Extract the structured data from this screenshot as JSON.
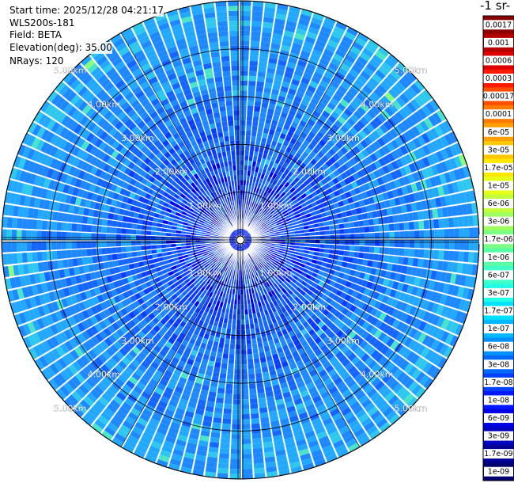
{
  "header": {
    "start_time": "Start time: 2025/12/28 04:21:17",
    "instrument": "WLS200s-181",
    "field": "Field: BETA",
    "elevation": "Elevation(deg): 35.00",
    "nrays": "NRays: 120"
  },
  "colorbar": {
    "unit_label": "-1 sr-",
    "labels": [
      "0.0017",
      "0.001",
      "0.0006",
      "0.0003",
      "0.00017",
      "0.0001",
      "6e-05",
      "3e-05",
      "1.7e-05",
      "1e-05",
      "6e-06",
      "3e-06",
      "1.7e-06",
      "1e-06",
      "6e-07",
      "3e-07",
      "1.7e-07",
      "1e-07",
      "6e-08",
      "3e-08",
      "1.7e-08",
      "1e-08",
      "6e-09",
      "3e-09",
      "1.7e-09",
      "1e-09"
    ],
    "colors": [
      "#8b0000",
      "#b30000",
      "#dd0000",
      "#ff1a00",
      "#ff4d00",
      "#ff7a00",
      "#ffa000",
      "#ffc800",
      "#ffe800",
      "#e6ff1a",
      "#c2ff3c",
      "#9dff60",
      "#7cff85",
      "#5bffa4",
      "#40ffc8",
      "#22ffe8",
      "#00e0ff",
      "#00b8ff",
      "#0090ff",
      "#0068ff",
      "#0040ff",
      "#0018ff",
      "#0000e6",
      "#0000c0",
      "#000096",
      "#00006e"
    ]
  },
  "chart_data": {
    "type": "polar scan (PPI)",
    "field": "BETA",
    "n_rays": 120,
    "elevation_deg": 35.0,
    "range_rings_km": [
      1.0,
      2.0,
      3.0,
      4.0,
      5.0
    ],
    "ring_labels": [
      "1.00km",
      "2.00km",
      "3.00km",
      "4.00km",
      "5.00km"
    ],
    "max_range_km": 6.2,
    "dominant_values": "3e-08 to 1e-07 at outer ranges; 1e-08 to 3e-08 near the center"
  }
}
